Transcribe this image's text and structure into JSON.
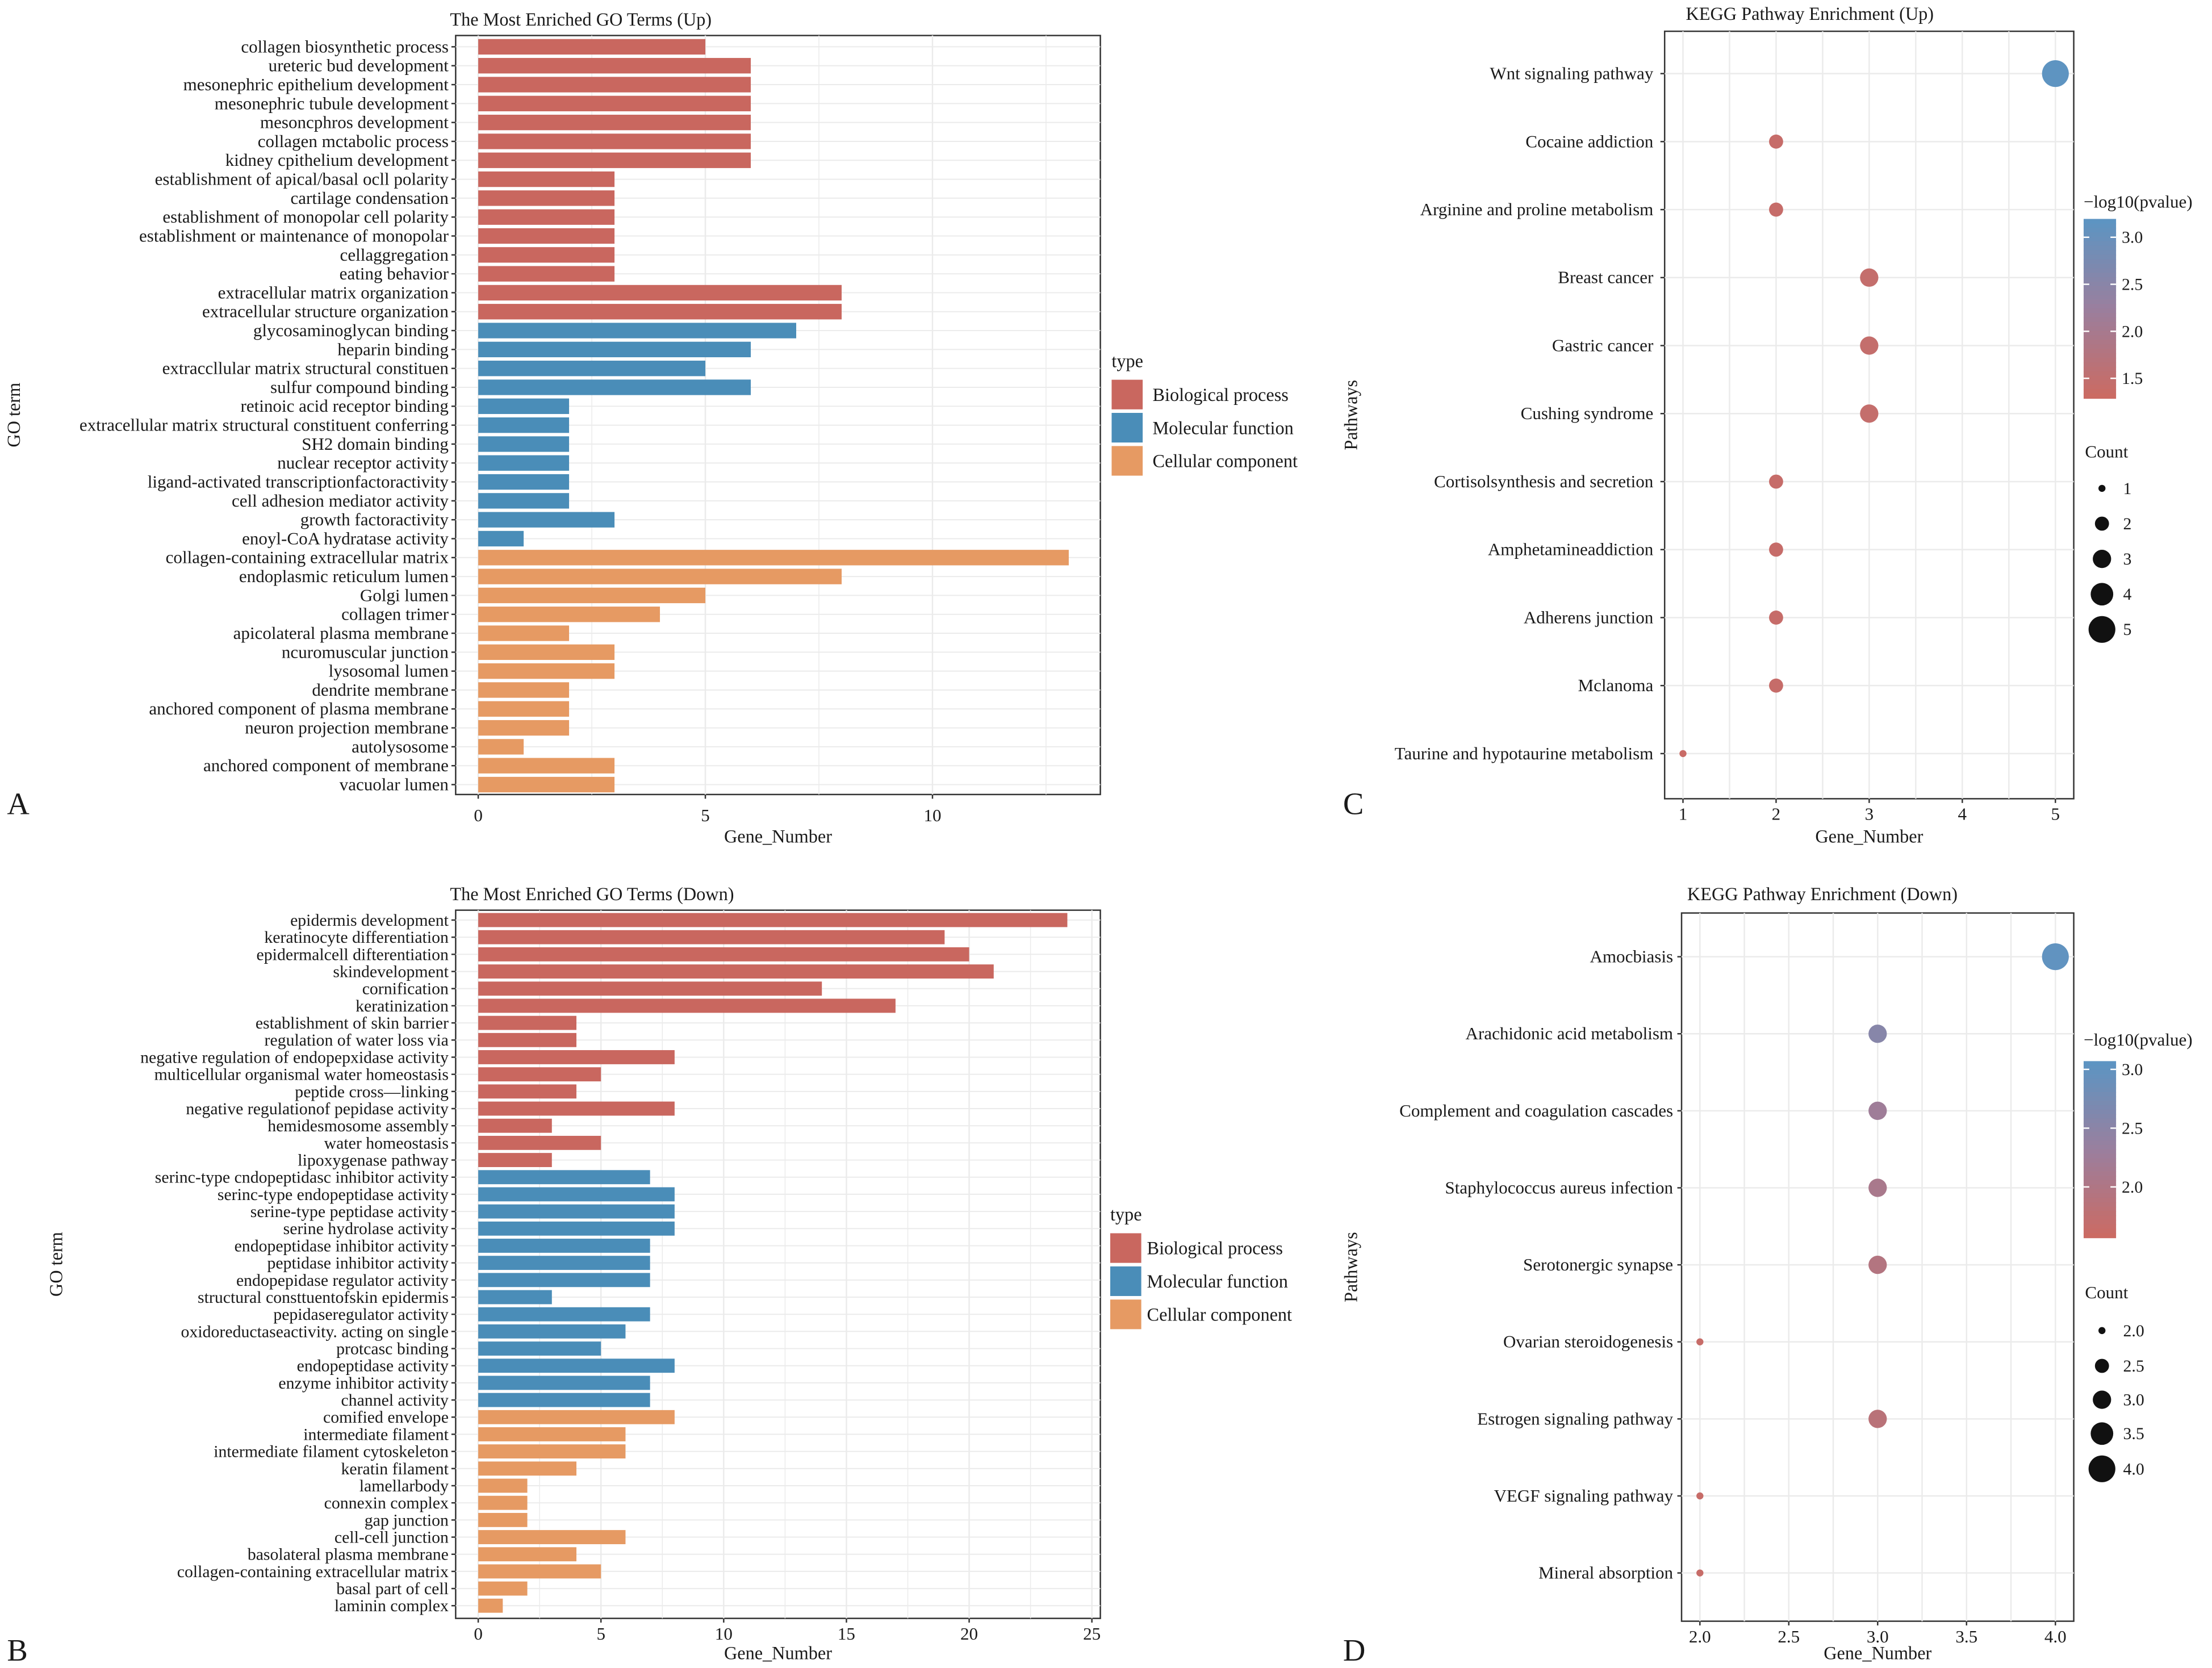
{
  "panel_letters": [
    "A",
    "B",
    "C",
    "D"
  ],
  "colors": {
    "Biological process": "#c9675f",
    "Molecular function": "#4a8db8",
    "Cellular component": "#e69a63",
    "pvalue_low": "#cc6a62",
    "pvalue_mid": "#9a7f9e",
    "pvalue_high": "#5b95c3"
  },
  "chart_data": [
    {
      "type": "bar",
      "orientation": "horizontal",
      "title": "The Most Enriched GO Terms (Up)",
      "xlabel": "Gene_Number",
      "ylabel": "GO term",
      "xlim": [
        0,
        13.6
      ],
      "xticks": [
        "0",
        "5",
        "10"
      ],
      "grid": true,
      "legend": {
        "title": "type",
        "entries": [
          "Biological process",
          "Molecular function",
          "Cellular component"
        ],
        "placement": "right"
      },
      "categories": [
        "collagen biosynthetic process",
        "ureteric bud development",
        "mesonephric epithelium development",
        "mesonephric tubule development",
        "mesoncphros development",
        "collagen mctabolic process",
        "kidney cpithelium development",
        "establishment of apical/basal ocll polarity",
        "cartilage condensation",
        "establishment of monopolar cell polarity",
        "establishment or maintenance of monopolar",
        "cellaggregation",
        "eating behavior",
        "extracellular matrix organization",
        "extracellular structure organization",
        "glycosaminoglycan binding",
        "heparin binding",
        "extraccllular matrix structural constituen",
        "sulfur compound binding",
        "retinoic acid receptor binding",
        "extracellular matrix structural constituent conferring",
        "SH2 domain binding",
        "nuclear receptor activity",
        "ligand-activated transcriptionfactoractivity",
        "cell adhesion mediator activity",
        "growth factoractivity",
        "enoyl-CoA hydratase activity",
        "collagen-containing extracellular matrix",
        "endoplasmic reticulum lumen",
        "Golgi lumen",
        "collagen trimer",
        "apicolateral plasma membrane",
        "ncuromuscular junction",
        "lysosomal lumen",
        "dendrite membrane",
        "anchored component of plasma membrane",
        "neuron projection membrane",
        "autolysosome",
        "anchored component of membrane",
        "vacuolar lumen"
      ],
      "values": [
        5,
        6,
        6,
        6,
        6,
        6,
        6,
        3,
        3,
        3,
        3,
        3,
        3,
        8,
        8,
        7,
        6,
        5,
        6,
        2,
        2,
        2,
        2,
        2,
        2,
        3,
        1,
        13,
        8,
        5,
        4,
        2,
        3,
        3,
        2,
        2,
        2,
        1,
        3,
        3
      ],
      "types": [
        "Biological process",
        "Biological process",
        "Biological process",
        "Biological process",
        "Biological process",
        "Biological process",
        "Biological process",
        "Biological process",
        "Biological process",
        "Biological process",
        "Biological process",
        "Biological process",
        "Biological process",
        "Biological process",
        "Biological process",
        "Molecular function",
        "Molecular function",
        "Molecular function",
        "Molecular function",
        "Molecular function",
        "Molecular function",
        "Molecular function",
        "Molecular function",
        "Molecular function",
        "Molecular function",
        "Molecular function",
        "Molecular function",
        "Cellular component",
        "Cellular component",
        "Cellular component",
        "Cellular component",
        "Cellular component",
        "Cellular component",
        "Cellular component",
        "Cellular component",
        "Cellular component",
        "Cellular component",
        "Cellular component",
        "Cellular component",
        "Cellular component"
      ]
    },
    {
      "type": "bar",
      "orientation": "horizontal",
      "title": "The Most Enriched GO Terms (Down)",
      "xlabel": "Gene_Number",
      "ylabel": "GO term",
      "xlim": [
        0,
        25.5
      ],
      "xticks": [
        "0",
        "5",
        "10",
        "15",
        "20",
        "25"
      ],
      "grid": true,
      "legend": {
        "title": "type",
        "entries": [
          "Biological process",
          "Molecular function",
          "Cellular component"
        ],
        "placement": "right"
      },
      "categories": [
        "epidermis development",
        "keratinocyte differentiation",
        "epidermalcell difterentiation",
        "skindevelopment",
        "cornification",
        "keratinization",
        "establishment of skin barrier",
        "regulation of water loss via",
        "negative regulation of endopepxidase activity",
        "multicellular organismal water homeostasis",
        "peptide cross—linking",
        "negative regulationof pepidase activity",
        "hemidesmosome assembly",
        "water homeostasis",
        "lipoxygenase pathway",
        "serinc-type cndopeptidasc inhibitor activity",
        "serinc-type endopeptidase activity",
        "serine-type peptidase activity",
        "serine hydrolase activity",
        "endopeptidase inhibitor activity",
        "peptidase inhibitor activity",
        "endopepidase regulator activity",
        "structural consttuentofskin epidermis",
        "pepidaseregulator activity",
        "oxidoreductaseactivity. acting on single",
        "protcasc binding",
        "endopeptidase activity",
        "enzyme inhibitor activity",
        "channel activity",
        "comified envelope",
        "intermediate filament",
        "intermediate filament cytoskeleton",
        "keratin filament",
        "lamellarbody",
        "connexin complex",
        "gap junction",
        "cell-cell junction",
        "basolateral plasma membrane",
        "collagen-containing extracellular matrix",
        "basal part of cell",
        "laminin complex"
      ],
      "values": [
        24,
        19,
        20,
        21,
        14,
        17,
        4,
        4,
        8,
        5,
        4,
        8,
        3,
        5,
        3,
        7,
        8,
        8,
        8,
        7,
        7,
        7,
        3,
        7,
        6,
        5,
        8,
        7,
        7,
        8,
        6,
        6,
        4,
        2,
        2,
        2,
        6,
        4,
        5,
        2,
        1
      ],
      "types": [
        "Biological process",
        "Biological process",
        "Biological process",
        "Biological process",
        "Biological process",
        "Biological process",
        "Biological process",
        "Biological process",
        "Biological process",
        "Biological process",
        "Biological process",
        "Biological process",
        "Biological process",
        "Biological process",
        "Biological process",
        "Molecular function",
        "Molecular function",
        "Molecular function",
        "Molecular function",
        "Molecular function",
        "Molecular function",
        "Molecular function",
        "Molecular function",
        "Molecular function",
        "Molecular function",
        "Molecular function",
        "Molecular function",
        "Molecular function",
        "Molecular function",
        "Cellular component",
        "Cellular component",
        "Cellular component",
        "Cellular component",
        "Cellular component",
        "Cellular component",
        "Cellular component",
        "Cellular component",
        "Cellular component",
        "Cellular component",
        "Cellular component",
        "Cellular component"
      ]
    },
    {
      "type": "scatter",
      "title": "KEGG Pathway Enrichment (Up)",
      "xlabel": "Gene_Number",
      "ylabel": "Pathways",
      "xlim": [
        0.8,
        5.2
      ],
      "xticks": [
        "1",
        "2",
        "3",
        "4",
        "5"
      ],
      "grid": true,
      "color_legend": {
        "title": "−log10(pvalue)",
        "range": [
          1.29,
          3.2
        ],
        "ticks": [
          "3.0",
          "2.5",
          "2.0",
          "1.5"
        ]
      },
      "size_legend": {
        "title": "Count",
        "values": [
          "1",
          "2",
          "3",
          "4",
          "5"
        ]
      },
      "categories": [
        "Wnt signaling pathway",
        "Cocaine addiction",
        "Arginine and proline metabolism",
        "Breast cancer",
        "Gastric cancer",
        "Cushing syndrome",
        "Cortisolsynthesis and secretion",
        "Amphetamineaddiction",
        "Adherens junction",
        "Mclanoma",
        "Taurine and hypotaurine metabolism"
      ],
      "x": [
        5,
        2,
        2,
        3,
        3,
        3,
        2,
        2,
        2,
        2,
        1
      ],
      "count": [
        5,
        2,
        2,
        3,
        3,
        3,
        2,
        2,
        2,
        2,
        1
      ],
      "neg_log10_pvalue": [
        3.15,
        1.4,
        1.4,
        1.45,
        1.45,
        1.45,
        1.4,
        1.4,
        1.4,
        1.4,
        1.35
      ]
    },
    {
      "type": "scatter",
      "title": "KEGG Pathway Enrichment (Down)",
      "xlabel": "Gene_Number",
      "ylabel": "Pathways",
      "xlim": [
        1.95,
        4.05
      ],
      "xticks": [
        "2.0",
        "2.5",
        "3.0",
        "3.5",
        "4.0"
      ],
      "grid": true,
      "color_legend": {
        "title": "−log10(pvalue)",
        "range": [
          1.57,
          3.07
        ],
        "ticks": [
          "3.0",
          "2.5",
          "2.0"
        ]
      },
      "size_legend": {
        "title": "Count",
        "values": [
          "2.0",
          "2.5",
          "3.0",
          "3.5",
          "4.0"
        ]
      },
      "categories": [
        "Amocbiasis",
        "Arachidonic acid metabolism",
        "Complement and coagulation cascades",
        "Staphylococcus aureus infection",
        "Serotonergic synapse",
        "Ovarian steroidogenesis",
        "Estrogen signaling pathway",
        "VEGF signaling pathway",
        "Mineral absorption"
      ],
      "x": [
        4,
        3,
        3,
        3,
        3,
        2,
        3,
        2,
        2
      ],
      "count": [
        4,
        3,
        3,
        3,
        3,
        2,
        3,
        2,
        2
      ],
      "neg_log10_pvalue": [
        3.0,
        2.55,
        2.25,
        2.1,
        1.95,
        1.65,
        1.85,
        1.65,
        1.65
      ]
    }
  ]
}
